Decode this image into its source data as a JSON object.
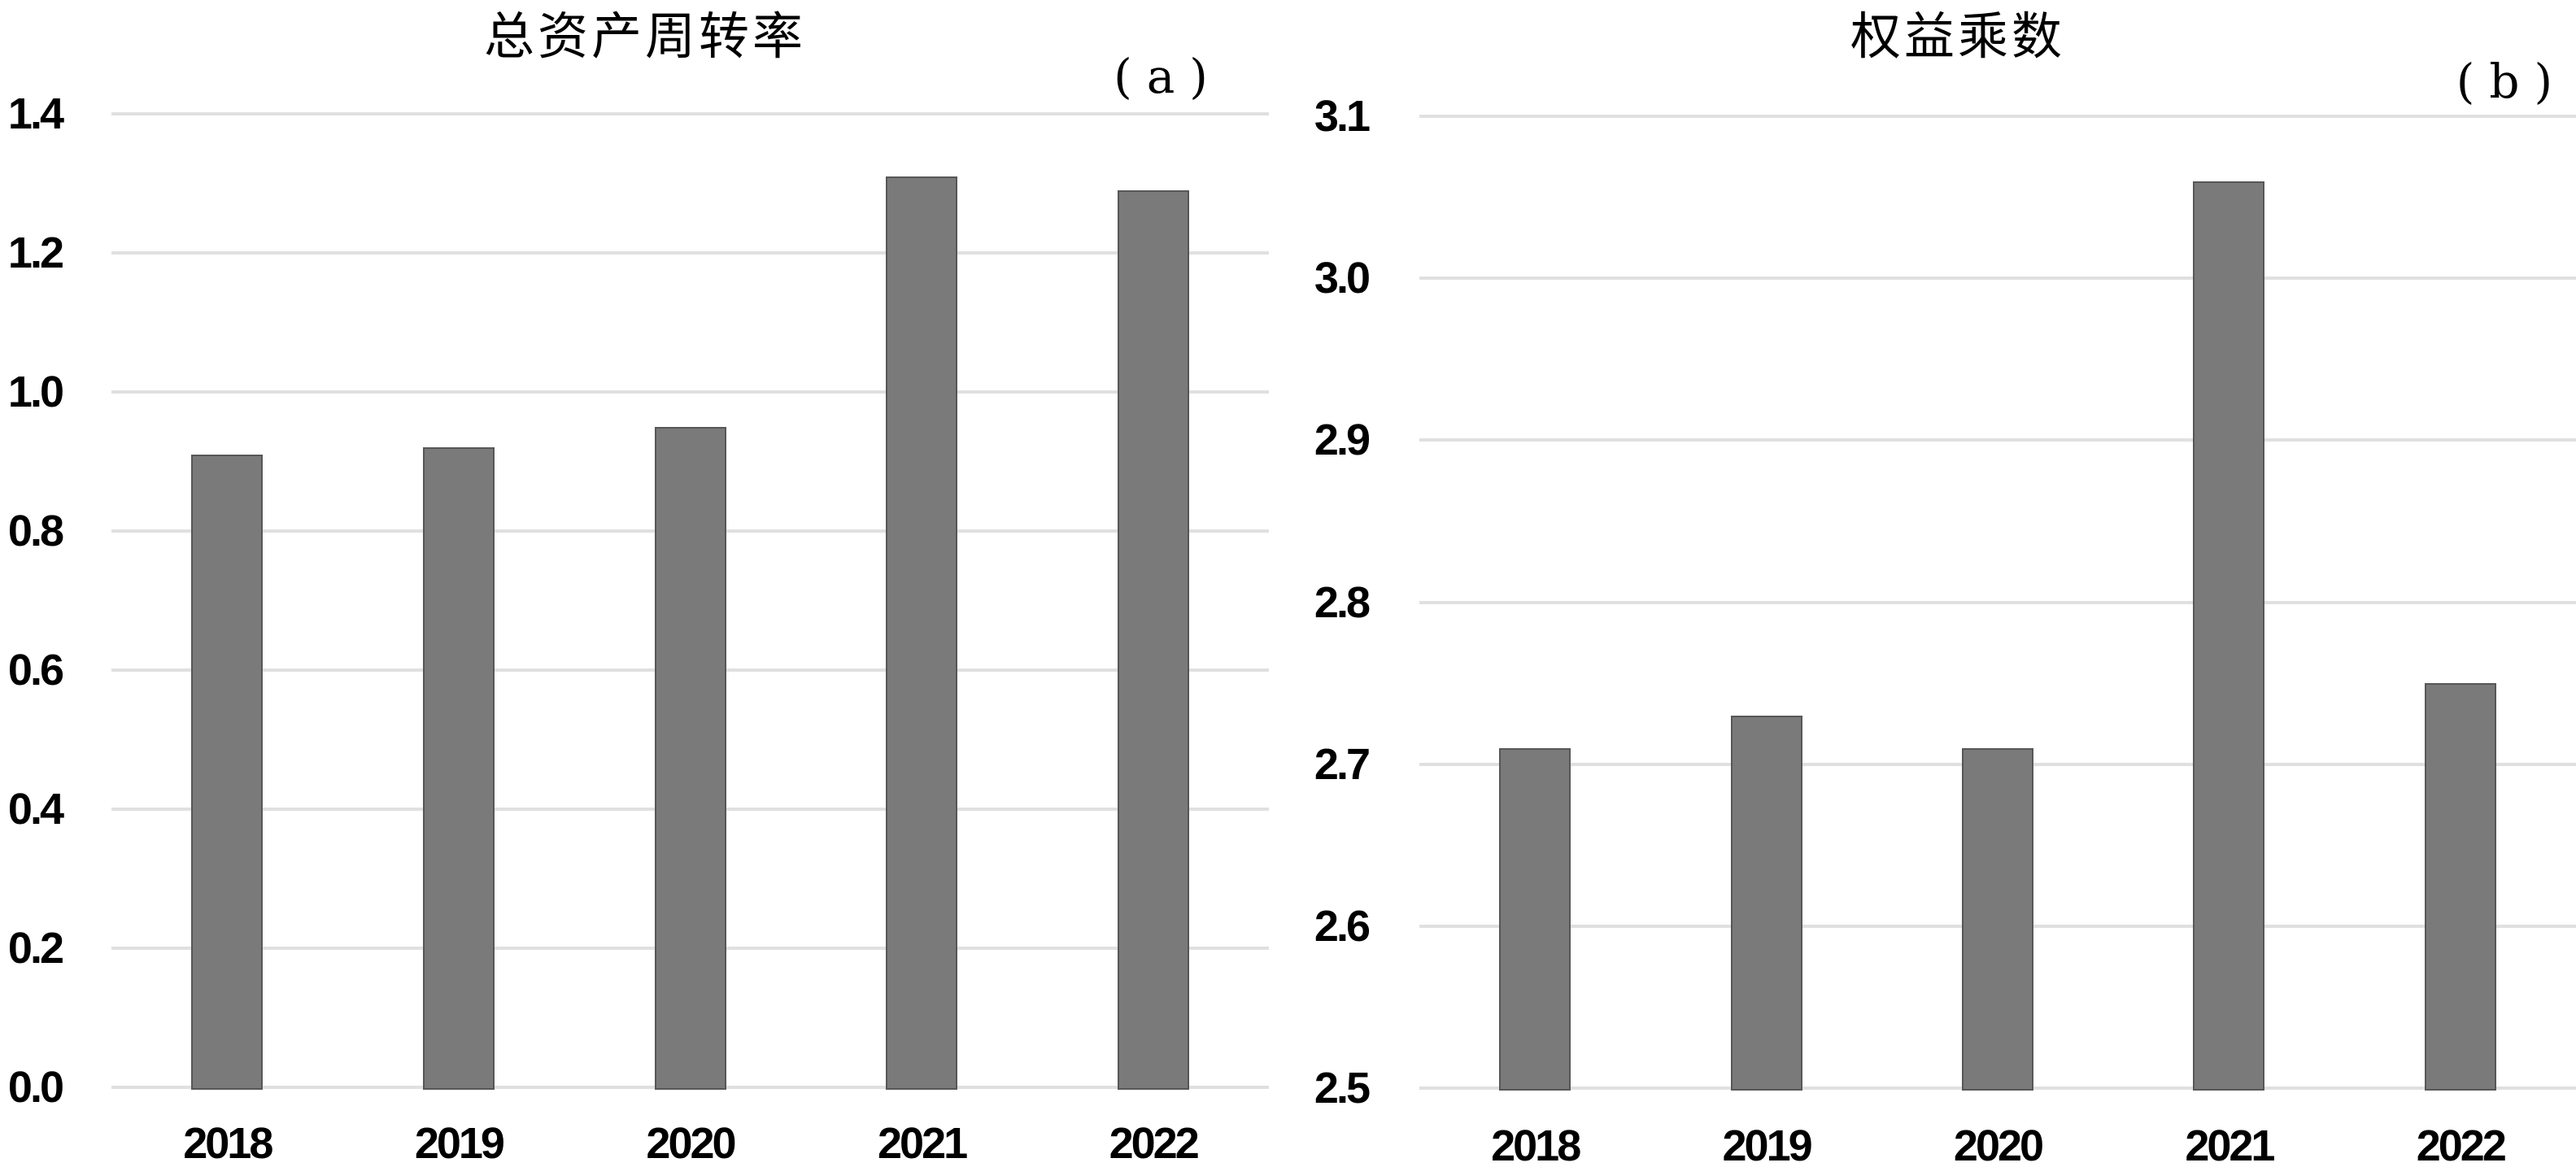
{
  "page": {
    "background": "#ffffff"
  },
  "chart_data": [
    {
      "type": "bar",
      "title": "总资产周转率",
      "panel_label": "(a)",
      "categories": [
        "2018",
        "2019",
        "2020",
        "2021",
        "2022"
      ],
      "values": [
        0.91,
        0.92,
        0.95,
        1.31,
        1.29
      ],
      "ylim": [
        0.0,
        1.4
      ],
      "y_tick_step": 0.2,
      "y_tick_labels": [
        "1.4",
        "1.2",
        "1.0",
        "0.8",
        "0.6",
        "0.4",
        "0.2",
        "0.0"
      ],
      "xlabel": "",
      "ylabel": "",
      "grid": "horizontal",
      "legend": "none",
      "bar_color": "#7a7a7a",
      "bar_border_color": "#575757",
      "gridline_color": "#e0e0e0",
      "text_color": "#000000"
    },
    {
      "type": "bar",
      "title": "权益乘数",
      "panel_label": "(b)",
      "categories": [
        "2018",
        "2019",
        "2020",
        "2021",
        "2022"
      ],
      "values": [
        2.71,
        2.73,
        2.71,
        3.06,
        2.75
      ],
      "ylim": [
        2.5,
        3.1
      ],
      "y_tick_step": 0.1,
      "y_tick_labels": [
        "3.1",
        "3.0",
        "2.9",
        "2.8",
        "2.7",
        "2.6",
        "2.5"
      ],
      "xlabel": "",
      "ylabel": "",
      "grid": "horizontal",
      "legend": "none",
      "bar_color": "#7a7a7a",
      "bar_border_color": "#575757",
      "gridline_color": "#e0e0e0",
      "text_color": "#000000"
    }
  ]
}
